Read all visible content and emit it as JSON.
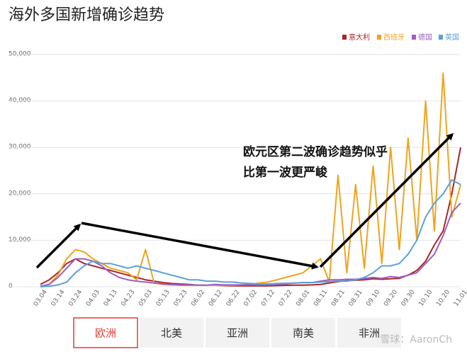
{
  "chart_data": {
    "type": "line",
    "title": "海外多国新增确诊趋势",
    "categories": [
      "03.04",
      null,
      "03.14",
      null,
      "03.24",
      null,
      "04.03",
      null,
      "04.13",
      null,
      "04.23",
      null,
      "05.03",
      null,
      "05.13",
      null,
      "05.23",
      null,
      "06.02",
      null,
      "06.12",
      null,
      "06.22",
      null,
      "07.02",
      null,
      "07.12",
      null,
      "07.22",
      null,
      "08.01",
      null,
      "08.11",
      null,
      "08.21",
      null,
      "08.31",
      null,
      "09.10",
      null,
      "09.20",
      null,
      "09.30",
      null,
      "10.10",
      null,
      "10.20",
      null,
      "11.01"
    ],
    "series": [
      {
        "name": "意大利",
        "color": "#a8262b",
        "values": [
          500,
          1500,
          3000,
          5000,
          6000,
          5000,
          4500,
          4000,
          3500,
          3000,
          2500,
          2000,
          1500,
          1200,
          900,
          700,
          600,
          500,
          350,
          300,
          300,
          250,
          200,
          200,
          200,
          200,
          200,
          250,
          300,
          350,
          350,
          400,
          500,
          800,
          1100,
          1300,
          1400,
          1500,
          1700,
          1600,
          1700,
          1800,
          2500,
          3500,
          5500,
          9000,
          12000,
          20000,
          30000
        ]
      },
      {
        "name": "西班牙",
        "color": "#f0a31e",
        "values": [
          100,
          500,
          2500,
          6000,
          8000,
          7500,
          6000,
          5000,
          4000,
          3500,
          3000,
          1500,
          8000,
          800,
          500,
          400,
          300,
          300,
          300,
          300,
          300,
          350,
          300,
          400,
          500,
          800,
          1000,
          1500,
          2000,
          2500,
          3000,
          4500,
          6000,
          1000,
          24000,
          3000,
          22000,
          4000,
          26000,
          5000,
          30000,
          8000,
          32000,
          10000,
          40000,
          12000,
          46000,
          15000,
          22000
        ]
      },
      {
        "name": "德国",
        "color": "#9c5fc4",
        "values": [
          100,
          500,
          2000,
          4000,
          6000,
          6000,
          5500,
          4500,
          3000,
          2000,
          1500,
          1200,
          1000,
          800,
          600,
          500,
          400,
          400,
          350,
          350,
          500,
          400,
          400,
          400,
          400,
          400,
          400,
          500,
          600,
          800,
          900,
          900,
          1200,
          1500,
          1500,
          1600,
          1600,
          1800,
          2000,
          1800,
          2200,
          2000,
          2500,
          3000,
          5000,
          7000,
          11000,
          16000,
          18000
        ]
      },
      {
        "name": "英国",
        "color": "#5ba0dc",
        "values": [
          0,
          100,
          400,
          1000,
          3000,
          4500,
          5500,
          5000,
          5000,
          4500,
          4000,
          4500,
          4000,
          3500,
          3000,
          2500,
          2000,
          1500,
          1500,
          1200,
          1200,
          1000,
          1000,
          800,
          700,
          600,
          600,
          700,
          750,
          800,
          900,
          900,
          1000,
          1100,
          1200,
          1200,
          1500,
          2000,
          3000,
          4500,
          4500,
          5000,
          7000,
          10000,
          15000,
          18000,
          20000,
          23000,
          22000
        ]
      }
    ],
    "ylim": [
      0,
      50000
    ],
    "yticks": [
      0,
      {
        "value": 10000,
        "label": "10,000"
      },
      {
        "value": 20000,
        "label": "20,000"
      },
      {
        "value": 30000,
        "label": "30,000"
      },
      {
        "value": 40000,
        "label": "40,000"
      },
      {
        "value": 50000,
        "label": "50,000"
      }
    ],
    "grid": true,
    "legend": "top-right",
    "annotations": [
      "欧元区第二波确诊趋势似乎",
      "比第一波更严峻"
    ]
  },
  "tabs": {
    "items": [
      "欧洲",
      "北美",
      "亚洲",
      "南美",
      "非洲"
    ],
    "selected": 0
  },
  "watermark": "雪球：AaronCh"
}
